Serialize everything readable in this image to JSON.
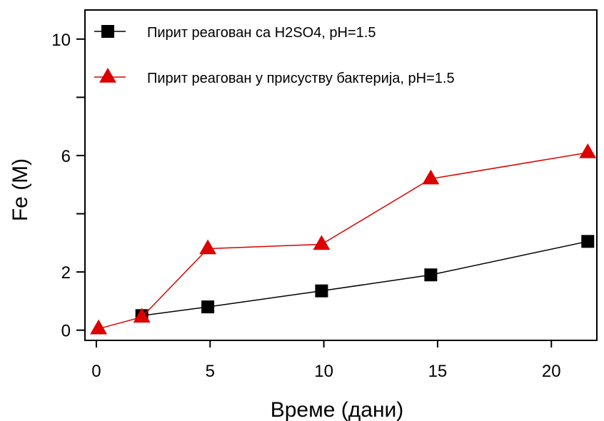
{
  "chart_data": {
    "type": "line",
    "title": "",
    "xlabel": "Време (дани)",
    "ylabel": "Fe (M)",
    "xlim": [
      -0.5,
      22
    ],
    "ylim": [
      -0.35,
      11
    ],
    "x_ticks": [
      0,
      5,
      10,
      15,
      20
    ],
    "x_tick_labels": [
      "0",
      "5",
      "10",
      "15",
      "20"
    ],
    "y_ticks": [
      0,
      2,
      4,
      6,
      8,
      10
    ],
    "y_tick_labels": [
      "0",
      "2",
      "",
      "6",
      "",
      "10"
    ],
    "grid": false,
    "legend_position": "top-left",
    "series": [
      {
        "name": "Пирит реагован са H2SO4, pH=1.5",
        "marker": "square",
        "color": "#000000",
        "x": [
          2,
          4.9,
          9.9,
          14.7,
          21.6
        ],
        "y": [
          0.5,
          0.8,
          1.35,
          1.9,
          3.05
        ]
      },
      {
        "name": "Пирит реагован у присуству бактерија, pH=1.5",
        "marker": "triangle",
        "color": "#dd0000",
        "x": [
          0.1,
          2,
          4.9,
          9.9,
          14.7,
          21.6
        ],
        "y": [
          0.05,
          0.45,
          2.8,
          2.95,
          5.2,
          6.1
        ]
      }
    ]
  }
}
